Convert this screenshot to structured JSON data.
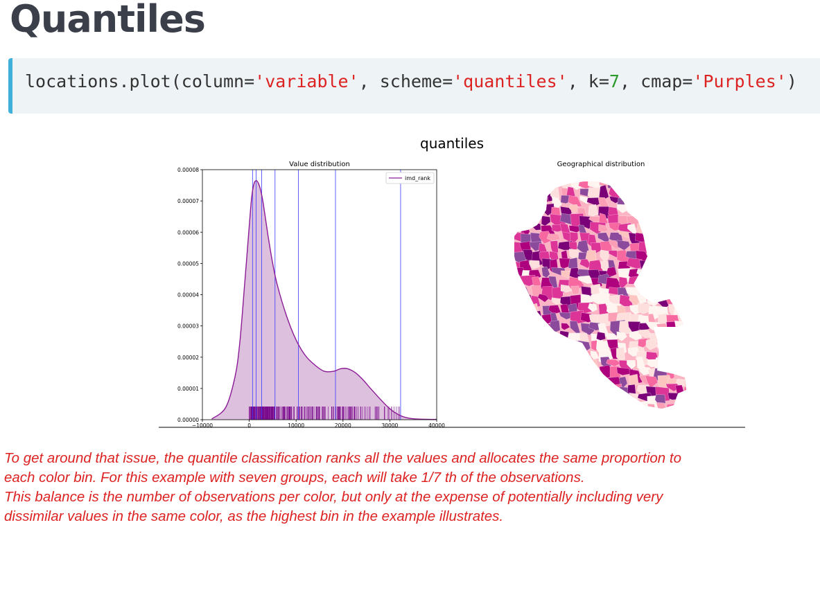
{
  "heading": "Quantiles",
  "code": {
    "prefix": "locations.plot(column=",
    "arg_column": "'variable'",
    "sep1": ", scheme=",
    "arg_scheme": "'quantiles'",
    "sep2": ", k=",
    "arg_k": "7",
    "sep3": ", cmap=",
    "arg_cmap": "'Purples'",
    "suffix": ")"
  },
  "figure": {
    "suptitle": "quantiles",
    "map_title": "Geographical distribution",
    "map_palette": [
      "#fff5f0",
      "#fde0dd",
      "#fcc5c0",
      "#fa9fb5",
      "#f768a1",
      "#dd3497",
      "#ae017e",
      "#7a0177",
      "#8c4a9c"
    ]
  },
  "chart_data": {
    "type": "area",
    "title": "Value distribution",
    "xlabel": "",
    "ylabel": "",
    "xlim": [
      -10000,
      40000
    ],
    "ylim": [
      0,
      8e-05
    ],
    "xticks": [
      -10000,
      0,
      10000,
      20000,
      30000,
      40000
    ],
    "xtick_labels": [
      "−10000",
      "0",
      "10000",
      "20000",
      "30000",
      "40000"
    ],
    "yticks": [
      0,
      1e-05,
      2e-05,
      3e-05,
      4e-05,
      5e-05,
      6e-05,
      7e-05,
      8e-05
    ],
    "ytick_labels": [
      "0.00000",
      "0.00001",
      "0.00002",
      "0.00003",
      "0.00004",
      "0.00005",
      "0.00006",
      "0.00007",
      "0.00008"
    ],
    "legend": {
      "label": "imd_rank",
      "position": "upper right"
    },
    "series": [
      {
        "name": "imd_rank",
        "x": [
          -8000,
          -5000,
          -3000,
          -2000,
          -1000,
          0,
          500,
          1000,
          1500,
          2000,
          2500,
          3000,
          4000,
          5000,
          6000,
          8000,
          10000,
          12000,
          14000,
          16000,
          18000,
          19500,
          21000,
          22500,
          24000,
          26000,
          28000,
          30000,
          32000,
          34000,
          36000,
          38000,
          40000
        ],
        "y": [
          2e-07,
          4e-06,
          1.4e-05,
          2.5e-05,
          4.3e-05,
          6.2e-05,
          7.1e-05,
          7.55e-05,
          7.65e-05,
          7.55e-05,
          7.3e-05,
          6.9e-05,
          5.9e-05,
          5e-05,
          4.3e-05,
          3.3e-05,
          2.55e-05,
          2.05e-05,
          1.75e-05,
          1.55e-05,
          1.55e-05,
          1.63e-05,
          1.63e-05,
          1.52e-05,
          1.32e-05,
          9.8e-06,
          6.5e-06,
          3.5e-06,
          1.5e-06,
          5e-07,
          2e-07,
          1e-07,
          1e-07
        ]
      }
    ],
    "bin_edges": [
      700,
      1450,
      2650,
      5500,
      10500,
      18400,
      32300
    ],
    "rug_range": [
      0,
      32500
    ],
    "colors": {
      "line": "#8b1a96",
      "fill": "#ddbfde",
      "bin_lines": "#3b3bff",
      "rug": "#7a0a8c"
    }
  },
  "description": {
    "line1": "To get around that issue, the quantile classification ranks all the values and allocates the same proportion to",
    "line2": "each color bin. For this example with seven groups, each will take 1/7 th of the observations.",
    "line3": "This balance is the number of observations per color, but only at the expense of potentially including very",
    "line4": "dissimilar values in the same color, as the highest bin in the example illustrates."
  }
}
